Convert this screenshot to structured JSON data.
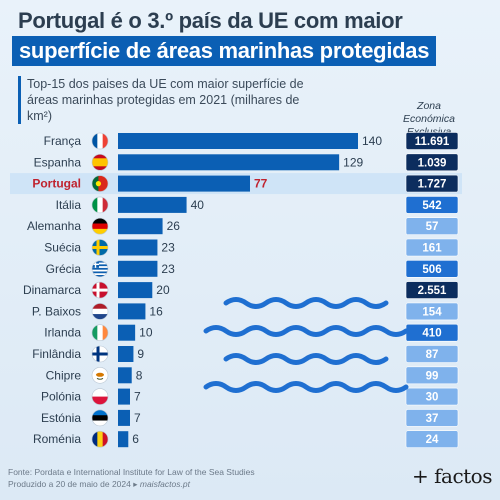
{
  "header": {
    "title_line1": "Portugal é o 3.º país da UE com maior",
    "title_line2": "superfície de áreas marinhas protegidas",
    "subtitle": "Top-15 dos paises da UE com maior superfície de áreas marinhas protegidas em 2021 (milhares de km²)"
  },
  "zee_header": {
    "line1": "Zona Económica",
    "line2": "Exclusiva"
  },
  "chart_data": {
    "type": "bar",
    "orientation": "horizontal",
    "highlight": "Portugal",
    "categories": [
      "França",
      "Espanha",
      "Portugal",
      "Itália",
      "Alemanha",
      "Suécia",
      "Grécia",
      "Dinamarca",
      "P. Baixos",
      "Irlanda",
      "Finlândia",
      "Chipre",
      "Polónia",
      "Estónia",
      "Roménia"
    ],
    "values": [
      140,
      129,
      77,
      40,
      26,
      23,
      23,
      20,
      16,
      10,
      9,
      8,
      7,
      7,
      6
    ],
    "zee_values": [
      "11.691",
      "1.039",
      "1.727",
      "542",
      "57",
      "161",
      "506",
      "2.551",
      "154",
      "410",
      "87",
      "99",
      "30",
      "37",
      "24"
    ],
    "title": "Portugal é o 3.º país da UE com maior superfície de áreas marinhas protegidas",
    "unit": "milhares de km²"
  },
  "colors": {
    "bar": "#0b5fb4",
    "highlight_band": "#cfe4f7",
    "highlight_text": "#c0232f",
    "zee_dark": "#0c2d5e",
    "zee_medium": "#1f6fd1",
    "zee_light": "#7fb2ec",
    "wave": "#1f6fd1"
  },
  "flag_icons": [
    "france-flag-icon",
    "spain-flag-icon",
    "portugal-flag-icon",
    "italy-flag-icon",
    "germany-flag-icon",
    "sweden-flag-icon",
    "greece-flag-icon",
    "denmark-flag-icon",
    "netherlands-flag-icon",
    "ireland-flag-icon",
    "finland-flag-icon",
    "cyprus-flag-icon",
    "poland-flag-icon",
    "estonia-flag-icon",
    "romania-flag-icon"
  ],
  "footer": {
    "source": "Fonte: Pordata e International Institute for Law of the Sea Studies",
    "produced": "Produzido a 20 de maio de 2024 ▸",
    "site": "maisfactos.pt"
  },
  "logo": "+ factos"
}
